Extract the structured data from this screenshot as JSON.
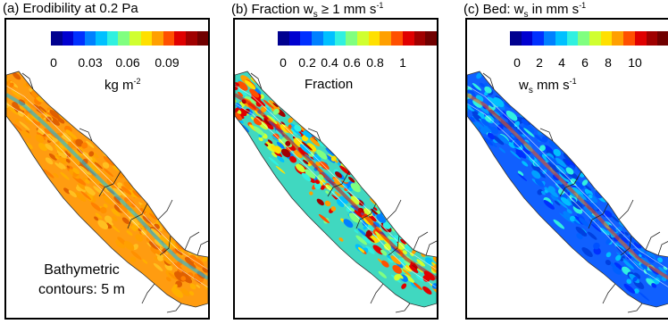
{
  "panels": [
    {
      "title": "(a) Erodibility at 0.2 Pa",
      "ticks": [
        "0",
        "0.03",
        "0.06",
        "0.09"
      ],
      "unit": "kg m",
      "unit_exp": "-2",
      "palette": "orange"
    },
    {
      "title_pre": "(b) Fraction w",
      "title_sub": "s",
      "title_post": " ≥ 1 mm s",
      "title_exp": "-1",
      "ticks": [
        "0",
        "0.2",
        "0.4",
        "0.6",
        "0.8",
        "1"
      ],
      "unit": "Fraction",
      "palette": "mixed"
    },
    {
      "title_pre": "(c) Bed:  w",
      "title_sub": "s",
      "title_post": " in mm s",
      "title_exp": "-1",
      "ticks": [
        "0",
        "2",
        "4",
        "6",
        "8",
        "10"
      ],
      "unit_pre": "w",
      "unit_sub": "s",
      "unit_post": " mm s",
      "unit_exp": "-1",
      "palette": "blue"
    }
  ],
  "annotation": {
    "line1": "Bathymetric",
    "line2": "contours: 5 m"
  },
  "colormap": [
    "#00008f",
    "#0000d0",
    "#0030ff",
    "#0080ff",
    "#00c0ff",
    "#30f0e0",
    "#80ff80",
    "#d0ff30",
    "#ffe000",
    "#ffa000",
    "#ff5000",
    "#e00000",
    "#a00000",
    "#700000"
  ]
}
